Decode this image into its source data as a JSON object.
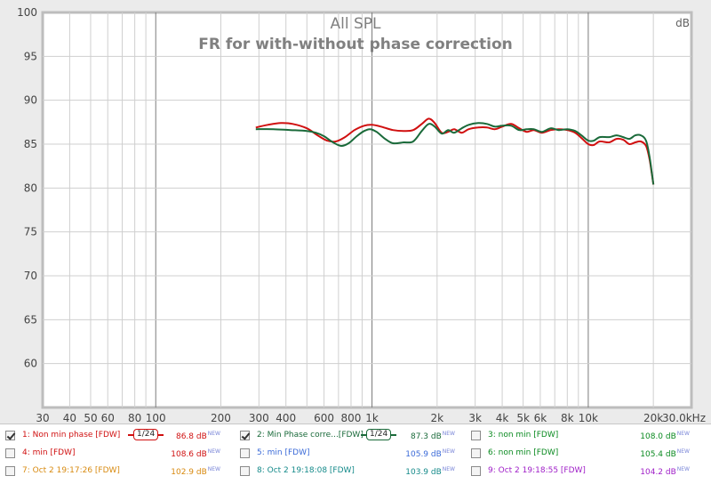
{
  "chart_data": {
    "type": "line",
    "title": "All SPL",
    "subtitle": "FR for with-without phase correction",
    "ylabel": "dB",
    "xlabel": "",
    "x_scale": "log",
    "xlim": [
      30,
      30000
    ],
    "ylim": [
      55,
      100
    ],
    "yticks": [
      60,
      65,
      70,
      75,
      80,
      85,
      90,
      95,
      100
    ],
    "ytick_labels": [
      "60",
      "65",
      "70",
      "75",
      "80",
      "85",
      "90",
      "95",
      "100"
    ],
    "xticks": [
      30,
      40,
      50,
      60,
      80,
      100,
      200,
      300,
      400,
      600,
      800,
      1000,
      2000,
      3000,
      4000,
      5000,
      6000,
      8000,
      10000,
      20000,
      30000
    ],
    "xtick_labels": [
      "30",
      "40",
      "50",
      "60",
      "80",
      "100",
      "200",
      "300",
      "400",
      "600",
      "800",
      "1k",
      "2k",
      "3k",
      "4k",
      "5k",
      "6k",
      "8k",
      "10k",
      "20k",
      "30.0kHz"
    ],
    "grid": true,
    "series": [
      {
        "name": "1: Non min phase [FDW]",
        "color": "#d01010",
        "points": [
          [
            290,
            86.9
          ],
          [
            330,
            87.2
          ],
          [
            380,
            87.4
          ],
          [
            430,
            87.3
          ],
          [
            500,
            86.8
          ],
          [
            560,
            86.0
          ],
          [
            620,
            85.4
          ],
          [
            680,
            85.3
          ],
          [
            750,
            85.8
          ],
          [
            830,
            86.6
          ],
          [
            920,
            87.1
          ],
          [
            1000,
            87.2
          ],
          [
            1100,
            87.0
          ],
          [
            1250,
            86.6
          ],
          [
            1400,
            86.5
          ],
          [
            1550,
            86.6
          ],
          [
            1700,
            87.3
          ],
          [
            1830,
            87.9
          ],
          [
            1950,
            87.4
          ],
          [
            2100,
            86.3
          ],
          [
            2250,
            86.4
          ],
          [
            2400,
            86.7
          ],
          [
            2600,
            86.3
          ],
          [
            2800,
            86.7
          ],
          [
            3100,
            86.9
          ],
          [
            3400,
            86.9
          ],
          [
            3700,
            86.7
          ],
          [
            4000,
            87.0
          ],
          [
            4400,
            87.3
          ],
          [
            4800,
            86.8
          ],
          [
            5200,
            86.4
          ],
          [
            5600,
            86.6
          ],
          [
            6100,
            86.3
          ],
          [
            6700,
            86.6
          ],
          [
            7300,
            86.7
          ],
          [
            8000,
            86.6
          ],
          [
            8700,
            86.3
          ],
          [
            9300,
            85.7
          ],
          [
            10000,
            85.0
          ],
          [
            10600,
            84.9
          ],
          [
            11300,
            85.3
          ],
          [
            12500,
            85.2
          ],
          [
            13500,
            85.6
          ],
          [
            14500,
            85.5
          ],
          [
            15500,
            85.0
          ],
          [
            16500,
            85.2
          ],
          [
            17500,
            85.3
          ],
          [
            18500,
            84.8
          ],
          [
            19200,
            83.3
          ],
          [
            19700,
            81.5
          ],
          [
            20000,
            80.4
          ]
        ]
      },
      {
        "name": "2: Min Phase corre...[FDW]",
        "color": "#1a6a3a",
        "points": [
          [
            290,
            86.7
          ],
          [
            350,
            86.7
          ],
          [
            420,
            86.6
          ],
          [
            500,
            86.5
          ],
          [
            550,
            86.3
          ],
          [
            600,
            85.9
          ],
          [
            660,
            85.2
          ],
          [
            720,
            84.8
          ],
          [
            780,
            85.1
          ],
          [
            850,
            85.9
          ],
          [
            920,
            86.5
          ],
          [
            980,
            86.7
          ],
          [
            1050,
            86.4
          ],
          [
            1150,
            85.6
          ],
          [
            1250,
            85.1
          ],
          [
            1400,
            85.2
          ],
          [
            1550,
            85.3
          ],
          [
            1700,
            86.5
          ],
          [
            1830,
            87.3
          ],
          [
            1950,
            87.0
          ],
          [
            2100,
            86.2
          ],
          [
            2250,
            86.6
          ],
          [
            2400,
            86.3
          ],
          [
            2600,
            86.8
          ],
          [
            2800,
            87.2
          ],
          [
            3100,
            87.4
          ],
          [
            3400,
            87.3
          ],
          [
            3700,
            87.0
          ],
          [
            4000,
            87.1
          ],
          [
            4400,
            87.1
          ],
          [
            4800,
            86.6
          ],
          [
            5200,
            86.7
          ],
          [
            5600,
            86.7
          ],
          [
            6100,
            86.4
          ],
          [
            6700,
            86.8
          ],
          [
            7300,
            86.6
          ],
          [
            8000,
            86.7
          ],
          [
            8700,
            86.5
          ],
          [
            9300,
            86.0
          ],
          [
            10000,
            85.4
          ],
          [
            10600,
            85.4
          ],
          [
            11300,
            85.8
          ],
          [
            12500,
            85.8
          ],
          [
            13500,
            86.0
          ],
          [
            14500,
            85.8
          ],
          [
            15500,
            85.6
          ],
          [
            16500,
            86.0
          ],
          [
            17500,
            86.0
          ],
          [
            18500,
            85.4
          ],
          [
            19200,
            83.6
          ],
          [
            19700,
            81.6
          ],
          [
            20000,
            80.4
          ]
        ]
      }
    ]
  },
  "legend": [
    {
      "label": "1: Non min phase [FDW]",
      "value": "86.8 dB",
      "badge": "NEW",
      "checked": true,
      "color": "#d01010",
      "smoothing": "1/24",
      "col": 0,
      "row": 0
    },
    {
      "label": "2: Min Phase corre...[FDW]",
      "value": "87.3 dB",
      "badge": "NEW",
      "checked": true,
      "color": "#1a6a3a",
      "smoothing": "1/24",
      "col": 1,
      "row": 0
    },
    {
      "label": "3: non min [FDW]",
      "value": "108.0 dB",
      "badge": "NEW",
      "checked": false,
      "color": "#0a8a20",
      "col": 2,
      "row": 0
    },
    {
      "label": "4: min [FDW]",
      "value": "108.6 dB",
      "badge": "NEW",
      "checked": false,
      "color": "#d01010",
      "col": 0,
      "row": 1
    },
    {
      "label": "5: min [FDW]",
      "value": "105.9 dB",
      "badge": "NEW",
      "checked": false,
      "color": "#3a6ad8",
      "col": 1,
      "row": 1
    },
    {
      "label": "6: non min [FDW]",
      "value": "105.4 dB",
      "badge": "NEW",
      "checked": false,
      "color": "#0a8a20",
      "col": 2,
      "row": 1
    },
    {
      "label": "7: Oct 2 19:17:26 [FDW]",
      "value": "102.9 dB",
      "badge": "NEW",
      "checked": false,
      "color": "#d88a10",
      "col": 0,
      "row": 2
    },
    {
      "label": "8: Oct 2 19:18:08 [FDW]",
      "value": "103.9 dB",
      "badge": "NEW",
      "checked": false,
      "color": "#158a8a",
      "col": 1,
      "row": 2
    },
    {
      "label": "9: Oct 2 19:18:55 [FDW]",
      "value": "104.2 dB",
      "badge": "NEW",
      "checked": false,
      "color": "#a020c8",
      "col": 2,
      "row": 2
    }
  ]
}
